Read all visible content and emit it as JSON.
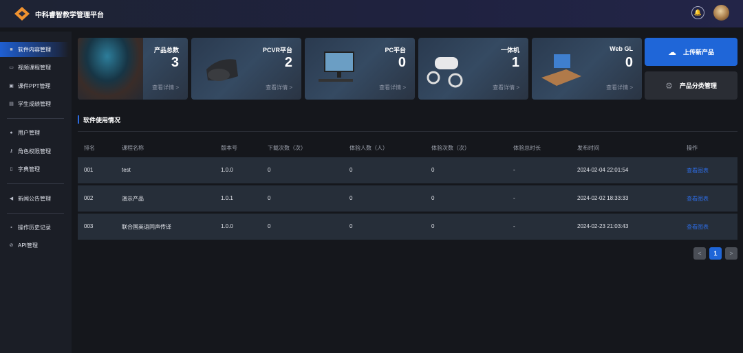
{
  "header": {
    "title": "中科睿智教学管理平台",
    "icons": [
      "logo-icon",
      "bell-icon",
      "avatar"
    ]
  },
  "sidebar": {
    "items": [
      {
        "label": "软件内容管理",
        "icon": "gamepad-icon",
        "active": true
      },
      {
        "label": "视频课程管理",
        "icon": "monitor-icon"
      },
      {
        "label": "课件PPT管理",
        "icon": "document-icon"
      },
      {
        "label": "学生成绩管理",
        "icon": "grade-icon"
      },
      {
        "label": "用户管理",
        "icon": "user-icon"
      },
      {
        "label": "角色权限管理",
        "icon": "key-icon"
      },
      {
        "label": "字典管理",
        "icon": "book-icon"
      },
      {
        "label": "新闻公告管理",
        "icon": "megaphone-icon"
      },
      {
        "label": "操作历史记录",
        "icon": "history-icon"
      },
      {
        "label": "API管理",
        "icon": "link-icon"
      }
    ]
  },
  "cards": [
    {
      "label": "产品总数",
      "value": "3",
      "more": "查看详情 >"
    },
    {
      "label": "PCVR平台",
      "value": "2",
      "more": "查看详情 >"
    },
    {
      "label": "PC平台",
      "value": "0",
      "more": "查看详情 >"
    },
    {
      "label": "一体机",
      "value": "1",
      "more": "查看详情 >"
    },
    {
      "label": "Web GL",
      "value": "0",
      "more": "查看详情 >"
    }
  ],
  "actions": {
    "upload": "上传新产品",
    "category": "产品分类管理",
    "accent": "#1f66d8"
  },
  "section": {
    "title": "软件使用情况"
  },
  "table": {
    "columns": [
      "排名",
      "课程名称",
      "版本号",
      "下载次数（次）",
      "体验人数（人）",
      "体验次数（次）",
      "体验总时长",
      "发布时间",
      "操作"
    ],
    "rows": [
      [
        "001",
        "test",
        "1.0.0",
        "0",
        "0",
        "0",
        "-",
        "2024-02-04 22:01:54",
        "查看图表"
      ],
      [
        "002",
        "演示产品",
        "1.0.1",
        "0",
        "0",
        "0",
        "-",
        "2024-02-02 18:33:33",
        "查看图表"
      ],
      [
        "003",
        "联合国英语同声传译",
        "1.0.0",
        "0",
        "0",
        "0",
        "-",
        "2024-02-23 21:03:43",
        "查看图表"
      ]
    ]
  },
  "pagination": {
    "prev": "<",
    "current": "1",
    "next": ">"
  }
}
